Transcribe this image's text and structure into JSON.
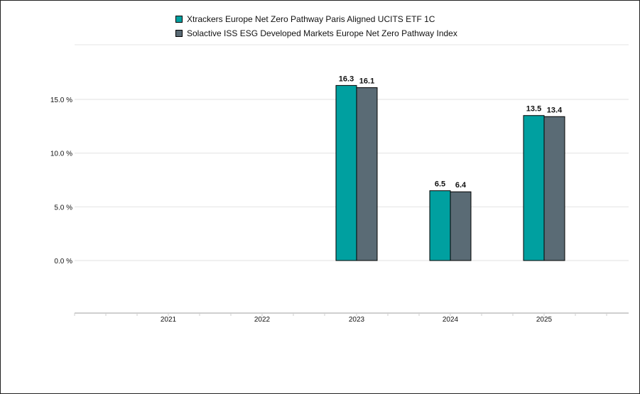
{
  "chart_data": {
    "type": "bar",
    "categories": [
      "2021",
      "2022",
      "2023",
      "2024",
      "2025"
    ],
    "series": [
      {
        "name": "Xtrackers Europe Net Zero Pathway Paris Aligned UCITS ETF 1C",
        "color": "#00a0a0",
        "values": [
          null,
          null,
          16.3,
          6.5,
          13.5
        ],
        "labels": [
          "",
          "",
          "16.3",
          "6.5",
          "13.5"
        ]
      },
      {
        "name": "Solactive ISS ESG Developed Markets Europe Net Zero Pathway Index",
        "color": "#5a6b75",
        "values": [
          null,
          null,
          16.1,
          6.4,
          13.4
        ],
        "labels": [
          "",
          "",
          "16.1",
          "6.4",
          "13.4"
        ]
      }
    ],
    "yticks": [
      0,
      5,
      10,
      15
    ],
    "ytick_labels": [
      "0.0 %",
      "5.0 %",
      "10.0 %",
      "15.0 %"
    ],
    "ylim": [
      -5,
      20
    ],
    "legend_position": "top-center",
    "grid": true
  }
}
